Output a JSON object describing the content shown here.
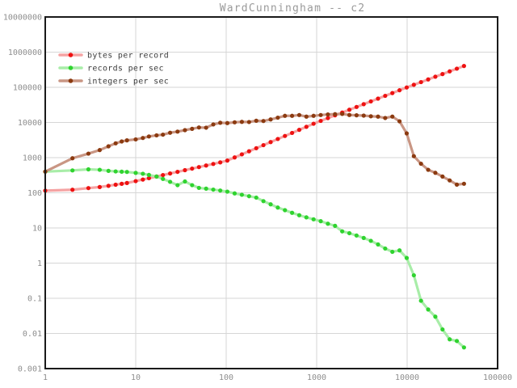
{
  "chart_data": {
    "type": "line",
    "title": "WardCunningham -- c2",
    "x_scale": "log",
    "y_scale": "log",
    "x_range": [
      1,
      100000
    ],
    "y_range": [
      0.001,
      10000000
    ],
    "grid": true,
    "legend_position": "top-left",
    "x_ticks": [
      {
        "value": 1,
        "label": "1"
      },
      {
        "value": 10,
        "label": "10"
      },
      {
        "value": 100,
        "label": "100"
      },
      {
        "value": 1000,
        "label": "1000"
      },
      {
        "value": 10000,
        "label": "10000"
      },
      {
        "value": 100000,
        "label": "100000"
      }
    ],
    "y_ticks": [
      {
        "value": 0.001,
        "label": "0.001"
      },
      {
        "value": 0.01,
        "label": "0.01"
      },
      {
        "value": 0.1,
        "label": "0.1"
      },
      {
        "value": 1,
        "label": "1"
      },
      {
        "value": 10,
        "label": "10"
      },
      {
        "value": 100,
        "label": "100"
      },
      {
        "value": 1000,
        "label": "1000"
      },
      {
        "value": 10000,
        "label": "10000"
      },
      {
        "value": 100000,
        "label": "100000"
      },
      {
        "value": 1000000,
        "label": "1000000"
      },
      {
        "value": 10000000,
        "label": "10000000"
      }
    ],
    "x": [
      1,
      2,
      3,
      4,
      5,
      6,
      7,
      8,
      10,
      12,
      14,
      17,
      20,
      24,
      29,
      35,
      42,
      50,
      60,
      72,
      86,
      103,
      124,
      149,
      179,
      215,
      258,
      310,
      372,
      446,
      535,
      642,
      770,
      924,
      1109,
      1331,
      1597,
      1916,
      2299,
      2759,
      3311,
      3973,
      4768,
      5722,
      6866,
      8239,
      9887,
      11864,
      14237,
      17084,
      20501,
      24601,
      29521,
      35425,
      42510
    ],
    "series": [
      {
        "name": "bytes per record",
        "marker_color": "#ee1111",
        "line_color": "#f5a3a3",
        "values": [
          115,
          122,
          136,
          146,
          158,
          170,
          180,
          190,
          215,
          238,
          260,
          290,
          319,
          354,
          394,
          440,
          487,
          538,
          597,
          662,
          733,
          826,
          1012,
          1239,
          1517,
          1853,
          2265,
          2767,
          3388,
          4130,
          5047,
          6166,
          7516,
          9204,
          11090,
          13310,
          15970,
          19160,
          23000,
          27590,
          33110,
          39730,
          47680,
          57220,
          68660,
          82390,
          98870,
          117900,
          140500,
          167500,
          200000,
          238100,
          284000,
          338600,
          403600
        ]
      },
      {
        "name": "records per sec",
        "marker_color": "#2fd32f",
        "line_color": "#a8eda8",
        "values": [
          400,
          433,
          464,
          450,
          420,
          405,
          398,
          392,
          368,
          348,
          322,
          290,
          248,
          205,
          165,
          210,
          165,
          138,
          131,
          123,
          116,
          108,
          96,
          88,
          80,
          73,
          58,
          47,
          38,
          32,
          27,
          23,
          20,
          17.6,
          15.6,
          13.2,
          11.5,
          8,
          7.1,
          6.1,
          5.2,
          4.3,
          3.4,
          2.6,
          2.1,
          2.3,
          1.4,
          0.45,
          0.085,
          0.048,
          0.03,
          0.013,
          0.0068,
          0.0061,
          0.004
        ]
      },
      {
        "name": "integers per sec",
        "marker_color": "#8b3a10",
        "line_color": "#c99684",
        "values": [
          400,
          960,
          1300,
          1640,
          2100,
          2550,
          2880,
          3100,
          3300,
          3620,
          4000,
          4300,
          4500,
          5100,
          5500,
          6050,
          6600,
          7200,
          7100,
          8800,
          9800,
          9600,
          10100,
          10400,
          10300,
          11200,
          11000,
          12200,
          13700,
          15450,
          15450,
          16260,
          14660,
          15450,
          16260,
          16870,
          17200,
          17500,
          16300,
          16000,
          15700,
          15000,
          14660,
          13400,
          14700,
          10800,
          4900,
          1100,
          670,
          450,
          370,
          290,
          225,
          171,
          181
        ]
      }
    ],
    "colors": {
      "background": "#ffffff",
      "grid": "#d6d6d6",
      "border": "#1a1a1a",
      "tick_text": "#8e8e8e",
      "title_text": "#9a9a9a",
      "legend_text": "#3c3c3c"
    }
  }
}
